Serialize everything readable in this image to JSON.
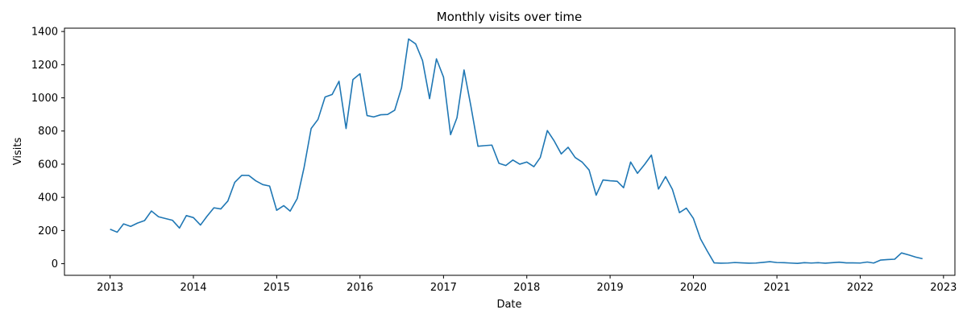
{
  "chart_data": {
    "type": "line",
    "title": "Monthly visits over time",
    "xlabel": "Date",
    "ylabel": "Visits",
    "xlim": [
      "2012-06-15",
      "2023-02-20"
    ],
    "ylim": [
      -70,
      1420
    ],
    "x_ticks": [
      "2013",
      "2014",
      "2015",
      "2016",
      "2017",
      "2018",
      "2019",
      "2020",
      "2021",
      "2022",
      "2023"
    ],
    "y_ticks": [
      0,
      200,
      400,
      600,
      800,
      1000,
      1200,
      1400
    ],
    "grid": false,
    "legend": "none",
    "series": [
      {
        "color": "#1f77b4",
        "points": [
          [
            "2013-01",
            208
          ],
          [
            "2013-02",
            190
          ],
          [
            "2013-03",
            240
          ],
          [
            "2013-04",
            225
          ],
          [
            "2013-05",
            245
          ],
          [
            "2013-06",
            260
          ],
          [
            "2013-07",
            318
          ],
          [
            "2013-08",
            283
          ],
          [
            "2013-09",
            272
          ],
          [
            "2013-10",
            262
          ],
          [
            "2013-11",
            215
          ],
          [
            "2013-12",
            290
          ],
          [
            "2014-01",
            278
          ],
          [
            "2014-02",
            233
          ],
          [
            "2014-03",
            285
          ],
          [
            "2014-04",
            337
          ],
          [
            "2014-05",
            330
          ],
          [
            "2014-06",
            378
          ],
          [
            "2014-07",
            490
          ],
          [
            "2014-08",
            533
          ],
          [
            "2014-09",
            532
          ],
          [
            "2014-10",
            500
          ],
          [
            "2014-11",
            477
          ],
          [
            "2014-12",
            468
          ],
          [
            "2015-01",
            322
          ],
          [
            "2015-02",
            350
          ],
          [
            "2015-03",
            317
          ],
          [
            "2015-04",
            393
          ],
          [
            "2015-05",
            580
          ],
          [
            "2015-06",
            815
          ],
          [
            "2015-07",
            870
          ],
          [
            "2015-08",
            1005
          ],
          [
            "2015-09",
            1020
          ],
          [
            "2015-10",
            1100
          ],
          [
            "2015-11",
            815
          ],
          [
            "2015-12",
            1110
          ],
          [
            "2016-01",
            1145
          ],
          [
            "2016-02",
            893
          ],
          [
            "2016-03",
            885
          ],
          [
            "2016-04",
            898
          ],
          [
            "2016-05",
            900
          ],
          [
            "2016-06",
            925
          ],
          [
            "2016-07",
            1060
          ],
          [
            "2016-08",
            1355
          ],
          [
            "2016-09",
            1325
          ],
          [
            "2016-10",
            1225
          ],
          [
            "2016-11",
            995
          ],
          [
            "2016-12",
            1235
          ],
          [
            "2017-01",
            1125
          ],
          [
            "2017-02",
            778
          ],
          [
            "2017-03",
            880
          ],
          [
            "2017-04",
            1168
          ],
          [
            "2017-05",
            950
          ],
          [
            "2017-06",
            708
          ],
          [
            "2017-07",
            712
          ],
          [
            "2017-08",
            715
          ],
          [
            "2017-09",
            605
          ],
          [
            "2017-10",
            592
          ],
          [
            "2017-11",
            625
          ],
          [
            "2017-12",
            600
          ],
          [
            "2018-01",
            613
          ],
          [
            "2018-02",
            585
          ],
          [
            "2018-03",
            640
          ],
          [
            "2018-04",
            803
          ],
          [
            "2018-05",
            740
          ],
          [
            "2018-06",
            662
          ],
          [
            "2018-07",
            702
          ],
          [
            "2018-08",
            640
          ],
          [
            "2018-09",
            612
          ],
          [
            "2018-10",
            565
          ],
          [
            "2018-11",
            413
          ],
          [
            "2018-12",
            505
          ],
          [
            "2019-01",
            500
          ],
          [
            "2019-02",
            497
          ],
          [
            "2019-03",
            458
          ],
          [
            "2019-04",
            613
          ],
          [
            "2019-05",
            545
          ],
          [
            "2019-06",
            598
          ],
          [
            "2019-07",
            655
          ],
          [
            "2019-08",
            450
          ],
          [
            "2019-09",
            525
          ],
          [
            "2019-10",
            448
          ],
          [
            "2019-11",
            308
          ],
          [
            "2019-12",
            335
          ],
          [
            "2020-01",
            273
          ],
          [
            "2020-02",
            150
          ],
          [
            "2020-03",
            78
          ],
          [
            "2020-04",
            5
          ],
          [
            "2020-05",
            3
          ],
          [
            "2020-06",
            4
          ],
          [
            "2020-07",
            7
          ],
          [
            "2020-08",
            5
          ],
          [
            "2020-09",
            3
          ],
          [
            "2020-10",
            4
          ],
          [
            "2020-11",
            8
          ],
          [
            "2020-12",
            12
          ],
          [
            "2021-01",
            7
          ],
          [
            "2021-02",
            6
          ],
          [
            "2021-03",
            4
          ],
          [
            "2021-04",
            2
          ],
          [
            "2021-05",
            6
          ],
          [
            "2021-06",
            4
          ],
          [
            "2021-07",
            6
          ],
          [
            "2021-08",
            3
          ],
          [
            "2021-09",
            6
          ],
          [
            "2021-10",
            9
          ],
          [
            "2021-11",
            5
          ],
          [
            "2021-12",
            5
          ],
          [
            "2022-01",
            4
          ],
          [
            "2022-02",
            10
          ],
          [
            "2022-03",
            4
          ],
          [
            "2022-04",
            22
          ],
          [
            "2022-05",
            25
          ],
          [
            "2022-06",
            27
          ],
          [
            "2022-07",
            65
          ],
          [
            "2022-08",
            53
          ],
          [
            "2022-09",
            40
          ],
          [
            "2022-10",
            30
          ]
        ]
      }
    ]
  }
}
